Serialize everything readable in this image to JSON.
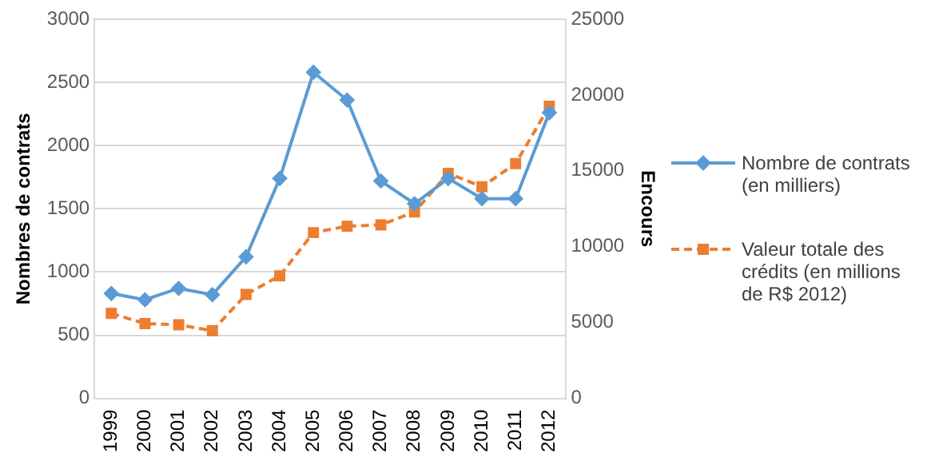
{
  "chart_data": {
    "type": "line",
    "categories": [
      "1999",
      "2000",
      "2001",
      "2002",
      "2003",
      "2004",
      "2005",
      "2006",
      "2007",
      "2008",
      "2009",
      "2010",
      "2011",
      "2012"
    ],
    "ylabel": "Nombres de contrats",
    "y2label": "Encours",
    "series": [
      {
        "name": "Nombre de contrats (en milliers)",
        "color": "#5b9bd5",
        "marker": "diamond",
        "line_style": "solid",
        "values": [
          830,
          780,
          870,
          820,
          1120,
          1740,
          2580,
          2360,
          1720,
          1540,
          1740,
          1580,
          1580,
          2260
        ]
      },
      {
        "name": "Valeur totale des crédits (en millions de R$ 2012)",
        "color": "#ed7d31",
        "marker": "square",
        "line_style": "dashed",
        "axis": "y2",
        "values": [
          5600,
          4930,
          4850,
          4460,
          6850,
          8080,
          10930,
          11350,
          11440,
          12290,
          14840,
          13950,
          15480,
          19260
        ]
      }
    ],
    "ylim": [
      0,
      3000
    ],
    "yticks": [
      0,
      500,
      1000,
      1500,
      2000,
      2500,
      3000
    ],
    "y2lim": [
      0,
      25000
    ],
    "y2ticks": [
      0,
      5000,
      10000,
      15000,
      20000,
      25000
    ],
    "grid": "y",
    "legend": "right"
  }
}
